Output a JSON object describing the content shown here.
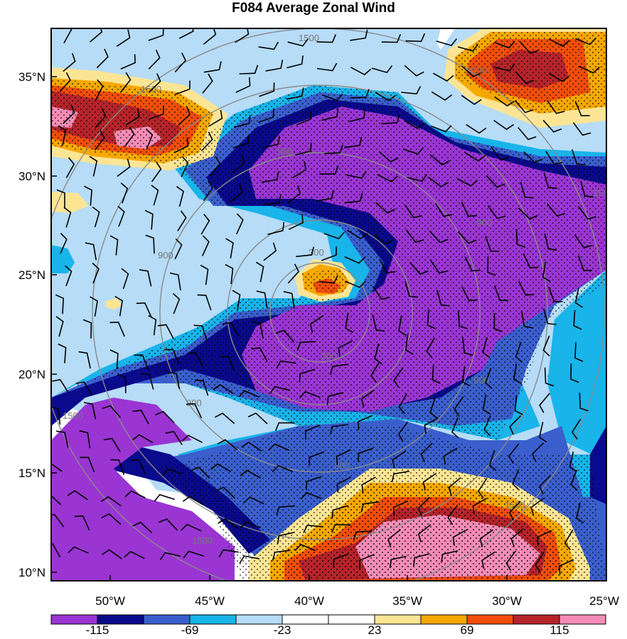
{
  "title": "F084 Average Zonal Wind",
  "axes": {
    "lon_ticks": [
      "50°W",
      "45°W",
      "40°W",
      "35°W",
      "30°W",
      "25°W"
    ],
    "lat_ticks": [
      "35°N",
      "30°N",
      "25°N",
      "20°N",
      "15°N",
      "10°N"
    ]
  },
  "colorbar": {
    "labels": [
      "-115",
      "-69",
      "-23",
      "23",
      "69",
      "115"
    ],
    "colors": [
      "#9a35d3",
      "#0a0a8c",
      "#3a5fcd",
      "#18b4ea",
      "#b6dcf7",
      "#ffffff",
      "#ffffff",
      "#fbe594",
      "#f6a800",
      "#f24e0b",
      "#b5242a",
      "#f58cb6"
    ]
  },
  "contour_labels": [
    "300",
    "300",
    "900",
    "900",
    "900",
    "900",
    "900",
    "900",
    "1500",
    "1500",
    "1500",
    "1500",
    "1500",
    "1500",
    "1500"
  ],
  "colors": {
    "contour_line": "#8a8a8a",
    "stipple": "#000000",
    "barb": "#000000"
  }
}
